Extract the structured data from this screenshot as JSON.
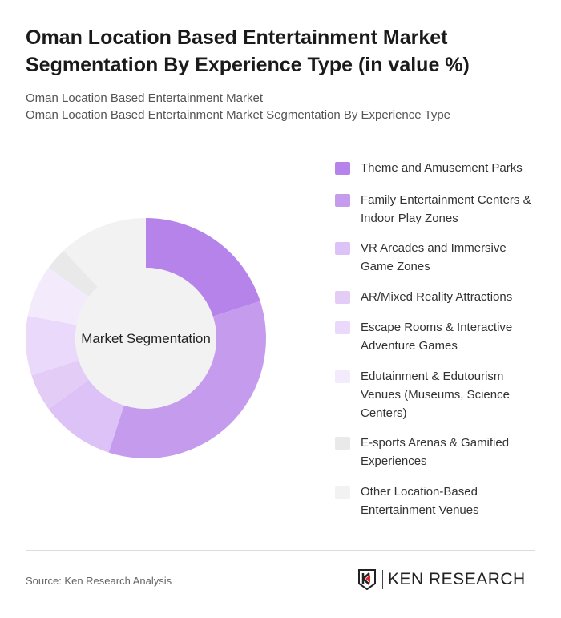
{
  "title": "Oman Location Based Entertainment Market Segmentation By Experience Type (in value %)",
  "subtitle1": "Oman Location Based Entertainment Market",
  "subtitle2": "Oman Location Based Entertainment Market Segmentation By Experience Type",
  "source": "Source: Ken Research Analysis",
  "logo_text": "KEN RESEARCH",
  "chart_data": {
    "type": "pie",
    "donut": true,
    "center_label": "Market Segmentation",
    "legend_position": "right",
    "categories": [
      "Theme and Amusement Parks",
      "Family Entertainment Centers & Indoor Play Zones",
      "VR Arcades and Immersive Game Zones",
      "AR/Mixed Reality Attractions",
      "Escape Rooms & Interactive Adventure Games",
      "Edutainment & Edutourism Venues (Museums, Science Centers)",
      "E-sports Arenas & Gamified Experiences",
      "Other Location-Based Entertainment Venues"
    ],
    "values": [
      20,
      35,
      10,
      5,
      8,
      7,
      3,
      12
    ],
    "colors": [
      "#b583ea",
      "#c59ced",
      "#dcc2f6",
      "#e3cdf7",
      "#ead9fa",
      "#f3ebfc",
      "#e9e9e9",
      "#f2f2f2"
    ]
  }
}
